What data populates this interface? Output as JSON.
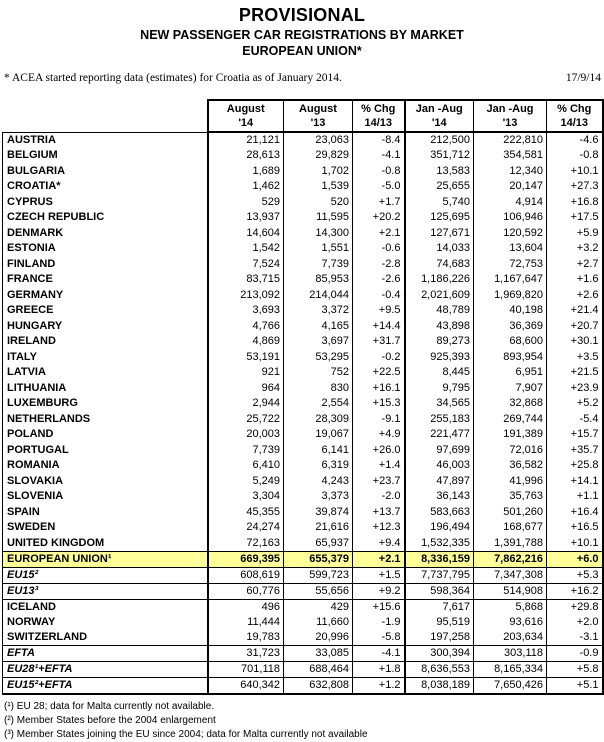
{
  "page": {
    "title": "PROVISIONAL",
    "subtitle": "NEW PASSENGER CAR REGISTRATIONS BY MARKET",
    "region": "EUROPEAN UNION*",
    "note": "* ACEA started reporting data (estimates) for Croatia as of January 2014.",
    "date": "17/9/14"
  },
  "table": {
    "columns": [
      {
        "line1": "August",
        "line2": "'14"
      },
      {
        "line1": "August",
        "line2": "'13"
      },
      {
        "line1": "% Chg",
        "line2": "14/13"
      },
      {
        "line1": "Jan -Aug",
        "line2": "'14"
      },
      {
        "line1": "Jan -Aug",
        "line2": "'13"
      },
      {
        "line1": "% Chg",
        "line2": "14/13"
      }
    ],
    "rows": [
      {
        "label": "AUSTRIA",
        "style": "country",
        "values": [
          "21,121",
          "23,063",
          "-8.4",
          "212,500",
          "222,810",
          "-4.6"
        ]
      },
      {
        "label": "BELGIUM",
        "style": "country",
        "values": [
          "28,613",
          "29,829",
          "-4.1",
          "351,712",
          "354,581",
          "-0.8"
        ]
      },
      {
        "label": "BULGARIA",
        "style": "country",
        "values": [
          "1,689",
          "1,702",
          "-0.8",
          "13,583",
          "12,340",
          "+10.1"
        ]
      },
      {
        "label": "CROATIA*",
        "style": "country",
        "values": [
          "1,462",
          "1,539",
          "-5.0",
          "25,655",
          "20,147",
          "+27.3"
        ]
      },
      {
        "label": "CYPRUS",
        "style": "country",
        "values": [
          "529",
          "520",
          "+1.7",
          "5,740",
          "4,914",
          "+16.8"
        ]
      },
      {
        "label": "CZECH REPUBLIC",
        "style": "country",
        "values": [
          "13,937",
          "11,595",
          "+20.2",
          "125,695",
          "106,946",
          "+17.5"
        ]
      },
      {
        "label": "DENMARK",
        "style": "country",
        "values": [
          "14,604",
          "14,300",
          "+2.1",
          "127,671",
          "120,592",
          "+5.9"
        ]
      },
      {
        "label": "ESTONIA",
        "style": "country",
        "values": [
          "1,542",
          "1,551",
          "-0.6",
          "14,033",
          "13,604",
          "+3.2"
        ]
      },
      {
        "label": "FINLAND",
        "style": "country",
        "values": [
          "7,524",
          "7,739",
          "-2.8",
          "74,683",
          "72,753",
          "+2.7"
        ]
      },
      {
        "label": "FRANCE",
        "style": "country",
        "values": [
          "83,715",
          "85,953",
          "-2.6",
          "1,186,226",
          "1,167,647",
          "+1.6"
        ]
      },
      {
        "label": "GERMANY",
        "style": "country",
        "values": [
          "213,092",
          "214,044",
          "-0.4",
          "2,021,609",
          "1,969,820",
          "+2.6"
        ]
      },
      {
        "label": "GREECE",
        "style": "country",
        "values": [
          "3,693",
          "3,372",
          "+9.5",
          "48,789",
          "40,198",
          "+21.4"
        ]
      },
      {
        "label": "HUNGARY",
        "style": "country",
        "values": [
          "4,766",
          "4,165",
          "+14.4",
          "43,898",
          "36,369",
          "+20.7"
        ]
      },
      {
        "label": "IRELAND",
        "style": "country",
        "values": [
          "4,869",
          "3,697",
          "+31.7",
          "89,273",
          "68,600",
          "+30.1"
        ]
      },
      {
        "label": "ITALY",
        "style": "country",
        "values": [
          "53,191",
          "53,295",
          "-0.2",
          "925,393",
          "893,954",
          "+3.5"
        ]
      },
      {
        "label": "LATVIA",
        "style": "country",
        "values": [
          "921",
          "752",
          "+22.5",
          "8,445",
          "6,951",
          "+21.5"
        ]
      },
      {
        "label": "LITHUANIA",
        "style": "country",
        "values": [
          "964",
          "830",
          "+16.1",
          "9,795",
          "7,907",
          "+23.9"
        ]
      },
      {
        "label": "LUXEMBURG",
        "style": "country",
        "values": [
          "2,944",
          "2,554",
          "+15.3",
          "34,565",
          "32,868",
          "+5.2"
        ]
      },
      {
        "label": "NETHERLANDS",
        "style": "country",
        "values": [
          "25,722",
          "28,309",
          "-9.1",
          "255,183",
          "269,744",
          "-5.4"
        ]
      },
      {
        "label": "POLAND",
        "style": "country",
        "values": [
          "20,003",
          "19,067",
          "+4.9",
          "221,477",
          "191,389",
          "+15.7"
        ]
      },
      {
        "label": "PORTUGAL",
        "style": "country",
        "values": [
          "7,739",
          "6,141",
          "+26.0",
          "97,699",
          "72,016",
          "+35.7"
        ]
      },
      {
        "label": "ROMANIA",
        "style": "country",
        "values": [
          "6,410",
          "6,319",
          "+1.4",
          "46,003",
          "36,582",
          "+25.8"
        ]
      },
      {
        "label": "SLOVAKIA",
        "style": "country",
        "values": [
          "5,249",
          "4,243",
          "+23.7",
          "47,897",
          "41,996",
          "+14.1"
        ]
      },
      {
        "label": "SLOVENIA",
        "style": "country",
        "values": [
          "3,304",
          "3,373",
          "-2.0",
          "36,143",
          "35,763",
          "+1.1"
        ]
      },
      {
        "label": "SPAIN",
        "style": "country",
        "values": [
          "45,355",
          "39,874",
          "+13.7",
          "583,663",
          "501,260",
          "+16.4"
        ]
      },
      {
        "label": "SWEDEN",
        "style": "country",
        "values": [
          "24,274",
          "21,616",
          "+12.3",
          "196,494",
          "168,677",
          "+16.5"
        ]
      },
      {
        "label": "UNITED KINGDOM",
        "style": "country",
        "values": [
          "72,163",
          "65,937",
          "+9.4",
          "1,532,335",
          "1,391,788",
          "+10.1"
        ]
      },
      {
        "label": "EUROPEAN UNION¹",
        "style": "eu",
        "values": [
          "669,395",
          "655,379",
          "+2.1",
          "8,336,159",
          "7,862,216",
          "+6.0"
        ]
      },
      {
        "label": "EU15²",
        "style": "sub",
        "values": [
          "608,619",
          "599,723",
          "+1.5",
          "7,737,795",
          "7,347,308",
          "+5.3"
        ]
      },
      {
        "label": "EU13³",
        "style": "sub",
        "values": [
          "60,776",
          "55,656",
          "+9.2",
          "598,364",
          "514,908",
          "+16.2"
        ]
      },
      {
        "label": "ICELAND",
        "style": "country",
        "values": [
          "496",
          "429",
          "+15.6",
          "7,617",
          "5,868",
          "+29.8"
        ]
      },
      {
        "label": "NORWAY",
        "style": "country",
        "values": [
          "11,444",
          "11,660",
          "-1.9",
          "95,519",
          "93,616",
          "+2.0"
        ]
      },
      {
        "label": "SWITZERLAND",
        "style": "country",
        "values": [
          "19,783",
          "20,996",
          "-5.8",
          "197,258",
          "203,634",
          "-3.1"
        ]
      },
      {
        "label": "EFTA",
        "style": "total",
        "values": [
          "31,723",
          "33,085",
          "-4.1",
          "300,394",
          "303,118",
          "-0.9"
        ]
      },
      {
        "label": "EU28¹+EFTA",
        "style": "total",
        "values": [
          "701,118",
          "688,464",
          "+1.8",
          "8,636,553",
          "8,165,334",
          "+5.8"
        ]
      },
      {
        "label": "EU15²+EFTA",
        "style": "total",
        "values": [
          "640,342",
          "632,808",
          "+1.2",
          "8,038,189",
          "7,650,426",
          "+5.1"
        ]
      }
    ]
  },
  "footnotes": [
    {
      "marker": "(¹)",
      "text": "EU 28; data for Malta currently not available."
    },
    {
      "marker": "(²)",
      "text": "Member States before the 2004 enlargement"
    },
    {
      "marker": "(³)",
      "text": "Member States joining the EU since 2004; data for Malta currently not available"
    }
  ],
  "colors": {
    "highlight": "#FFFF99",
    "border": "#000000",
    "text": "#000000"
  }
}
